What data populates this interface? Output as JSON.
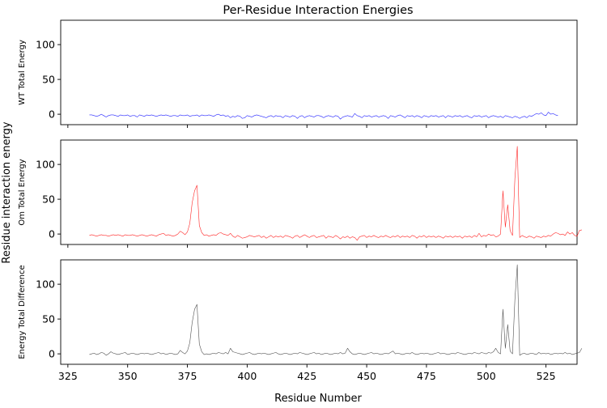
{
  "chart_data": {
    "type": "line",
    "title": "Per-Residue Interaction Energies",
    "xlabel": "Residue Number",
    "ylabel": "Residue interaction energy",
    "xlim": [
      322,
      538
    ],
    "ylim": [
      -15,
      135
    ],
    "x_ticks": [
      325,
      350,
      375,
      400,
      425,
      450,
      475,
      500,
      525
    ],
    "y_ticks": [
      0,
      50,
      100
    ],
    "grid": false,
    "x_start": 334,
    "subplots": [
      {
        "name": "WT Total Energy",
        "color": "#0000ff",
        "values": [
          -1,
          -1,
          -2,
          -3,
          -2,
          0,
          -2,
          -4,
          -2,
          -1,
          -1,
          -2,
          -3,
          -1,
          -2,
          -2,
          -1,
          -3,
          -2,
          -2,
          -4,
          -1,
          -2,
          -3,
          -1,
          -2,
          -1,
          -2,
          -3,
          -2,
          -1,
          -2,
          -1,
          -2,
          -3,
          -2,
          -2,
          -3,
          -1,
          -2,
          -2,
          -1,
          -3,
          -2,
          -2,
          -1,
          -3,
          -1,
          -2,
          -2,
          -1,
          -2,
          -3,
          -1,
          0,
          -2,
          -1,
          -3,
          -2,
          -5,
          -3,
          -4,
          -2,
          -3,
          -6,
          -5,
          -2,
          -3,
          -4,
          -2,
          -1,
          -2,
          -3,
          -4,
          -5,
          -3,
          -2,
          -4,
          -2,
          -3,
          -3,
          -5,
          -2,
          -3,
          -4,
          -2,
          -3,
          -6,
          -3,
          -2,
          -5,
          -3,
          -2,
          -3,
          -4,
          -2,
          -2,
          -3,
          -5,
          -3,
          -2,
          -3,
          -4,
          -2,
          -3,
          -7,
          -4,
          -3,
          -2,
          -3,
          -4,
          1,
          -2,
          -3,
          -5,
          -2,
          -3,
          -2,
          -4,
          -3,
          -2,
          -4,
          -3,
          -2,
          -3,
          -6,
          -2,
          -3,
          -4,
          -2,
          -1,
          -3,
          -5,
          -2,
          -3,
          -2,
          -4,
          -2,
          -3,
          -5,
          -2,
          -3,
          -4,
          -2,
          -3,
          -2,
          -4,
          -3,
          -2,
          -5,
          -2,
          -3,
          -4,
          -2,
          -3,
          -2,
          -4,
          -3,
          -2,
          -4,
          -5,
          -2,
          -3,
          -2,
          -4,
          -3,
          -2,
          -5,
          -3,
          -2,
          -3,
          -4,
          -3,
          -5,
          -2,
          -3,
          -4,
          -5,
          -3,
          -4,
          -6,
          -4,
          -3,
          -5,
          -2,
          -3,
          -1,
          1,
          0,
          2,
          -1,
          -2,
          3,
          0,
          1,
          -1,
          -2
        ]
      },
      {
        "name": "Om Total Energy",
        "color": "#ff0000",
        "values": [
          -2,
          -1,
          -2,
          -3,
          -2,
          -1,
          -2,
          -2,
          -3,
          -2,
          -1,
          -2,
          -1,
          -2,
          -3,
          -1,
          -2,
          -2,
          -1,
          -2,
          -3,
          -2,
          -1,
          -2,
          -3,
          -2,
          -1,
          -2,
          -3,
          -1,
          0,
          1,
          -2,
          -1,
          -2,
          -3,
          -2,
          0,
          4,
          2,
          -1,
          3,
          15,
          45,
          62,
          70,
          12,
          2,
          -2,
          -1,
          -3,
          -2,
          -1,
          -2,
          1,
          2,
          0,
          -1,
          -2,
          1,
          -3,
          -5,
          -2,
          -4,
          -6,
          -5,
          -4,
          -2,
          -3,
          -4,
          -3,
          -2,
          -5,
          -3,
          -6,
          -4,
          -2,
          -5,
          -3,
          -4,
          -3,
          -5,
          -2,
          -3,
          -4,
          -6,
          -3,
          -2,
          -5,
          -3,
          -1,
          -3,
          -5,
          -3,
          -2,
          -5,
          -4,
          -3,
          -2,
          -6,
          -3,
          -4,
          -5,
          -2,
          -4,
          -7,
          -4,
          -5,
          -3,
          -6,
          -4,
          -5,
          -9,
          -4,
          -3,
          -2,
          -5,
          -3,
          -4,
          -2,
          -4,
          -5,
          -3,
          -4,
          -2,
          -4,
          -5,
          -3,
          -4,
          -2,
          -5,
          -3,
          -4,
          -3,
          -5,
          -2,
          -3,
          -6,
          -3,
          -4,
          -2,
          -5,
          -3,
          -4,
          -3,
          -5,
          -3,
          -4,
          -6,
          -3,
          -4,
          -3,
          -5,
          -3,
          -4,
          -3,
          -6,
          -3,
          -4,
          -3,
          -5,
          -2,
          -4,
          1,
          -4,
          -2,
          -3,
          0,
          -2,
          -1,
          -4,
          -3,
          0,
          62,
          10,
          42,
          5,
          -2,
          80,
          126,
          -5,
          -2,
          -4,
          -5,
          -3,
          -4,
          -6,
          -3,
          -4,
          -5,
          -3,
          -4,
          -2,
          -3,
          0,
          2,
          1,
          -1,
          0,
          -2,
          3,
          0,
          2,
          -2,
          -3,
          5,
          6
        ]
      },
      {
        "name": "Energy Total Difference",
        "color": "#333333",
        "values": [
          -1,
          0,
          1,
          -1,
          0,
          2,
          1,
          -2,
          0,
          3,
          1,
          0,
          -1,
          0,
          1,
          2,
          -1,
          0,
          1,
          0,
          -1,
          0,
          1,
          0,
          1,
          0,
          -1,
          0,
          1,
          2,
          0,
          1,
          -1,
          0,
          1,
          0,
          -1,
          0,
          5,
          2,
          0,
          4,
          16,
          45,
          64,
          71,
          14,
          3,
          -1,
          0,
          -1,
          0,
          1,
          0,
          2,
          1,
          0,
          2,
          0,
          8,
          3,
          2,
          1,
          0,
          -1,
          0,
          1,
          2,
          0,
          -1,
          0,
          1,
          0,
          1,
          0,
          -1,
          0,
          1,
          2,
          0,
          -1,
          0,
          1,
          0,
          -1,
          0,
          1,
          0,
          2,
          1,
          0,
          -1,
          0,
          1,
          2,
          0,
          1,
          -1,
          0,
          1,
          0,
          -1,
          0,
          1,
          0,
          2,
          0,
          1,
          8,
          3,
          0,
          -1,
          0,
          1,
          0,
          -1,
          0,
          1,
          2,
          0,
          1,
          0,
          -1,
          0,
          1,
          0,
          2,
          4,
          0,
          1,
          0,
          -1,
          0,
          1,
          0,
          2,
          0,
          -1,
          0,
          1,
          0,
          1,
          0,
          -1,
          0,
          1,
          2,
          0,
          1,
          0,
          -1,
          0,
          1,
          0,
          2,
          1,
          0,
          -1,
          0,
          1,
          0,
          2,
          1,
          0,
          2,
          1,
          0,
          2,
          1,
          3,
          8,
          2,
          0,
          64,
          8,
          42,
          4,
          0,
          78,
          128,
          -2,
          0,
          1,
          -1,
          0,
          1,
          0,
          -1,
          2,
          0,
          1,
          0,
          1,
          -1,
          0,
          1,
          0,
          1,
          0,
          2,
          0,
          1,
          -1,
          0,
          1,
          2,
          8
        ]
      }
    ]
  }
}
